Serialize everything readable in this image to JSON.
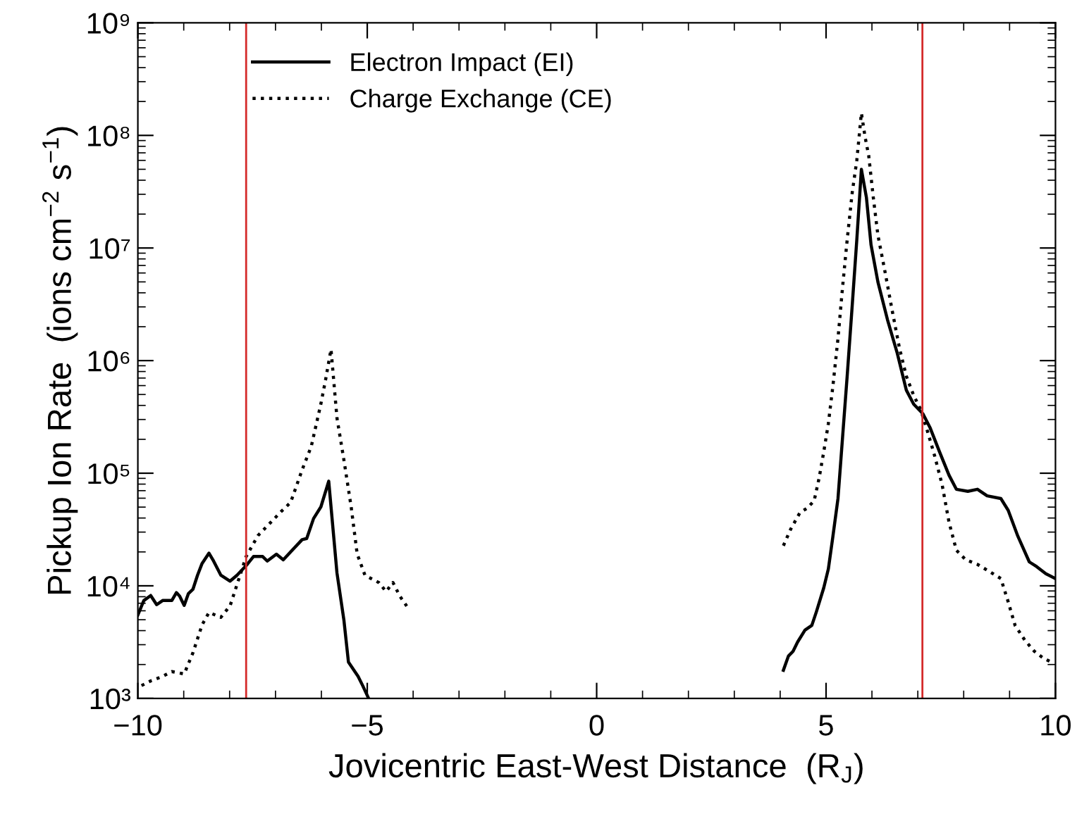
{
  "chart_data": {
    "type": "line",
    "xlabel": "Jovicentric East-West Distance  (R$_{J}$)",
    "ylabel": "Pickup Ion Rate  (ions cm$^{−2}$ s$^{−1}$)",
    "log": "y",
    "xlim": [
      -10,
      10
    ],
    "xticks": [
      -10,
      -5,
      0,
      5,
      10
    ],
    "ylim": [
      1000,
      1000000000
    ],
    "yticks": [
      {
        "value": 1000,
        "label": "10³"
      },
      {
        "value": 10000,
        "label": "10⁴"
      },
      {
        "value": 100000,
        "label": "10⁵"
      },
      {
        "value": 1000000,
        "label": "10⁶"
      },
      {
        "value": 10000000,
        "label": "10⁷"
      },
      {
        "value": 100000000,
        "label": "10⁸"
      },
      {
        "value": 1000000000,
        "label": "10⁹"
      }
    ],
    "grid": false,
    "legend": "top left",
    "ref_lines": [
      {
        "axis": "x",
        "value": -7.64,
        "color": "#d42a2a"
      },
      {
        "axis": "x",
        "value": 7.1,
        "color": "#d42a2a"
      }
    ],
    "series": [
      {
        "name": "Electron Impact (EI)",
        "color": "#000000",
        "line_style": "solid",
        "x": [
          -10.0,
          -9.87,
          -9.72,
          -9.59,
          -9.46,
          -9.26,
          -9.16,
          -9.09,
          -8.99,
          -8.9,
          -8.8,
          -8.7,
          -8.6,
          -8.45,
          -8.35,
          -8.19,
          -7.99,
          -7.84,
          -7.64,
          -7.48,
          -7.28,
          -7.18,
          -6.98,
          -6.83,
          -6.67,
          -6.42,
          -6.32,
          -6.17,
          -6.01,
          -5.84,
          -5.66,
          -5.51,
          -5.41,
          -5.2,
          -5.1,
          -4.97,
          0,
          4.07,
          4.18,
          4.28,
          4.38,
          4.54,
          4.69,
          4.79,
          4.95,
          5.05,
          5.15,
          5.26,
          5.36,
          5.46,
          5.57,
          5.67,
          5.77,
          5.88,
          5.98,
          6.13,
          6.34,
          6.55,
          6.75,
          6.91,
          7.11,
          7.27,
          7.47,
          7.68,
          7.84,
          8.09,
          8.3,
          8.51,
          8.81,
          8.97,
          9.18,
          9.43,
          9.59,
          9.79,
          10.0
        ],
        "values": [
          5500,
          7400,
          8200,
          6800,
          7400,
          7400,
          8700,
          8100,
          6700,
          8500,
          9300,
          12400,
          15800,
          19500,
          16600,
          12400,
          11000,
          12400,
          15100,
          18200,
          18200,
          16600,
          19100,
          17000,
          20000,
          25700,
          26300,
          39600,
          50300,
          85000,
          13000,
          5000,
          2100,
          1570,
          1300,
          1000,
          null,
          1780,
          2380,
          2620,
          3170,
          4040,
          4450,
          5900,
          9600,
          14100,
          27600,
          59600,
          209000,
          726000,
          3080000,
          11800000,
          50000000,
          28000000,
          10700000,
          5000000,
          2300000,
          1170000,
          546000,
          410000,
          338000,
          252000,
          156000,
          96000,
          72000,
          69000,
          72000,
          63000,
          59600,
          46800,
          27600,
          16300,
          14800,
          12800,
          11600
        ]
      },
      {
        "name": "Charge Exchange (CE)",
        "color": "#000000",
        "line_style": "dotted",
        "x": [
          -9.92,
          -9.72,
          -9.46,
          -9.26,
          -8.99,
          -8.8,
          -8.6,
          -8.45,
          -8.19,
          -7.99,
          -7.79,
          -7.64,
          -7.38,
          -7.18,
          -6.88,
          -6.67,
          -6.42,
          -6.22,
          -6.01,
          -5.91,
          -5.79,
          -5.66,
          -5.51,
          -5.35,
          -5.22,
          -5.05,
          -4.75,
          -4.59,
          -4.44,
          -4.29,
          -4.14,
          0,
          4.07,
          4.23,
          4.43,
          4.59,
          4.74,
          4.85,
          4.95,
          5.05,
          5.15,
          5.26,
          5.36,
          5.46,
          5.57,
          5.67,
          5.72,
          5.77,
          5.85,
          5.93,
          6.03,
          6.13,
          6.29,
          6.44,
          6.6,
          6.75,
          6.91,
          7.06,
          7.22,
          7.37,
          7.53,
          7.68,
          7.84,
          8.04,
          8.3,
          8.56,
          8.81,
          8.97,
          9.12,
          9.33,
          9.54,
          9.74,
          9.95
        ],
        "values": [
          1300,
          1430,
          1570,
          1730,
          1650,
          2540,
          4500,
          5800,
          5250,
          6640,
          11800,
          18200,
          28000,
          34000,
          45500,
          55000,
          107000,
          173000,
          414000,
          670000,
          1260000,
          309000,
          132000,
          50000,
          19200,
          12400,
          10700,
          8900,
          10700,
          8100,
          6600,
          null,
          22700,
          31900,
          44600,
          49000,
          56800,
          91000,
          155000,
          276000,
          598000,
          1570000,
          4500000,
          11800000,
          31000000,
          60000000,
          97000000,
          158000000,
          97000000,
          66000000,
          28000000,
          13000000,
          6000000,
          2800000,
          1290000,
          726000,
          490000,
          370000,
          229000,
          141000,
          79000,
          36700,
          20700,
          17100,
          15500,
          13400,
          11600,
          7200,
          4450,
          3300,
          2620,
          2270,
          2060
        ]
      }
    ]
  }
}
